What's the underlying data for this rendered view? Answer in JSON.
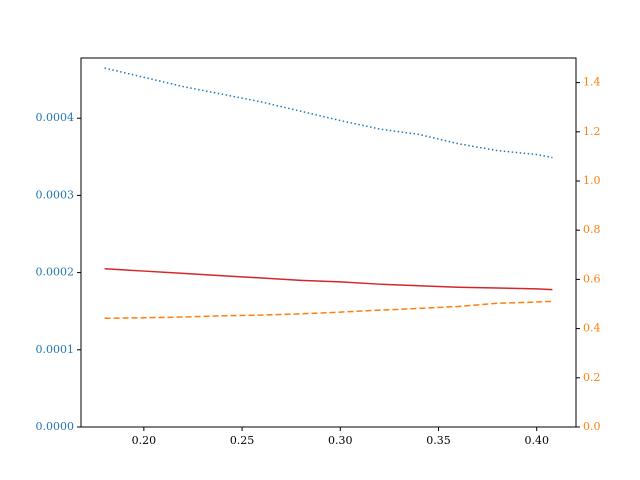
{
  "chart_data": {
    "type": "line",
    "x": [
      0.18,
      0.2,
      0.22,
      0.24,
      0.26,
      0.28,
      0.3,
      0.32,
      0.34,
      0.36,
      0.38,
      0.4,
      0.408
    ],
    "series": [
      {
        "color": "#1f77b4",
        "linestyle": "dotted",
        "axis": "y",
        "values": [
          0.000465,
          0.000453,
          0.000441,
          0.000431,
          0.000421,
          0.000409,
          0.000397,
          0.000386,
          0.000379,
          0.000367,
          0.000358,
          0.000353,
          0.000349
        ]
      },
      {
        "color": "#d62728",
        "linestyle": "solid",
        "axis": "y",
        "values": [
          0.000205,
          0.000202,
          0.000199,
          0.000196,
          0.000193,
          0.00019,
          0.000188,
          0.000185,
          0.000183,
          0.000181,
          0.00018,
          0.000179,
          0.000178
        ]
      },
      {
        "color": "#ff7f0e",
        "linestyle": "dashed",
        "axis": "y2",
        "values": [
          0.442,
          0.444,
          0.447,
          0.452,
          0.455,
          0.46,
          0.467,
          0.475,
          0.482,
          0.49,
          0.503,
          0.508,
          0.511
        ]
      }
    ],
    "xlim": [
      0.168,
      0.42
    ],
    "xticks": [
      {
        "value": 0.2,
        "label": "0.20"
      },
      {
        "value": 0.25,
        "label": "0.25"
      },
      {
        "value": 0.3,
        "label": "0.30"
      },
      {
        "value": 0.35,
        "label": "0.35"
      },
      {
        "value": 0.4,
        "label": "0.40"
      }
    ],
    "ylim": [
      0,
      0.000478
    ],
    "yticks": [
      {
        "value": 0,
        "label": "0.0000"
      },
      {
        "value": 0.0001,
        "label": "0.0001"
      },
      {
        "value": 0.0002,
        "label": "0.0002"
      },
      {
        "value": 0.0003,
        "label": "0.0003"
      },
      {
        "value": 0.0004,
        "label": "0.0004"
      }
    ],
    "ytick_color": "#1f77b4",
    "y2lim": [
      0,
      1.5
    ],
    "y2ticks": [
      {
        "value": 0,
        "label": "0.0"
      },
      0.2,
      0.4,
      0.6,
      0.8,
      {
        "value": 1,
        "label": "1.0"
      },
      1.2,
      1.4
    ],
    "y2tick_color": "#ff7f0e",
    "grid": false
  }
}
